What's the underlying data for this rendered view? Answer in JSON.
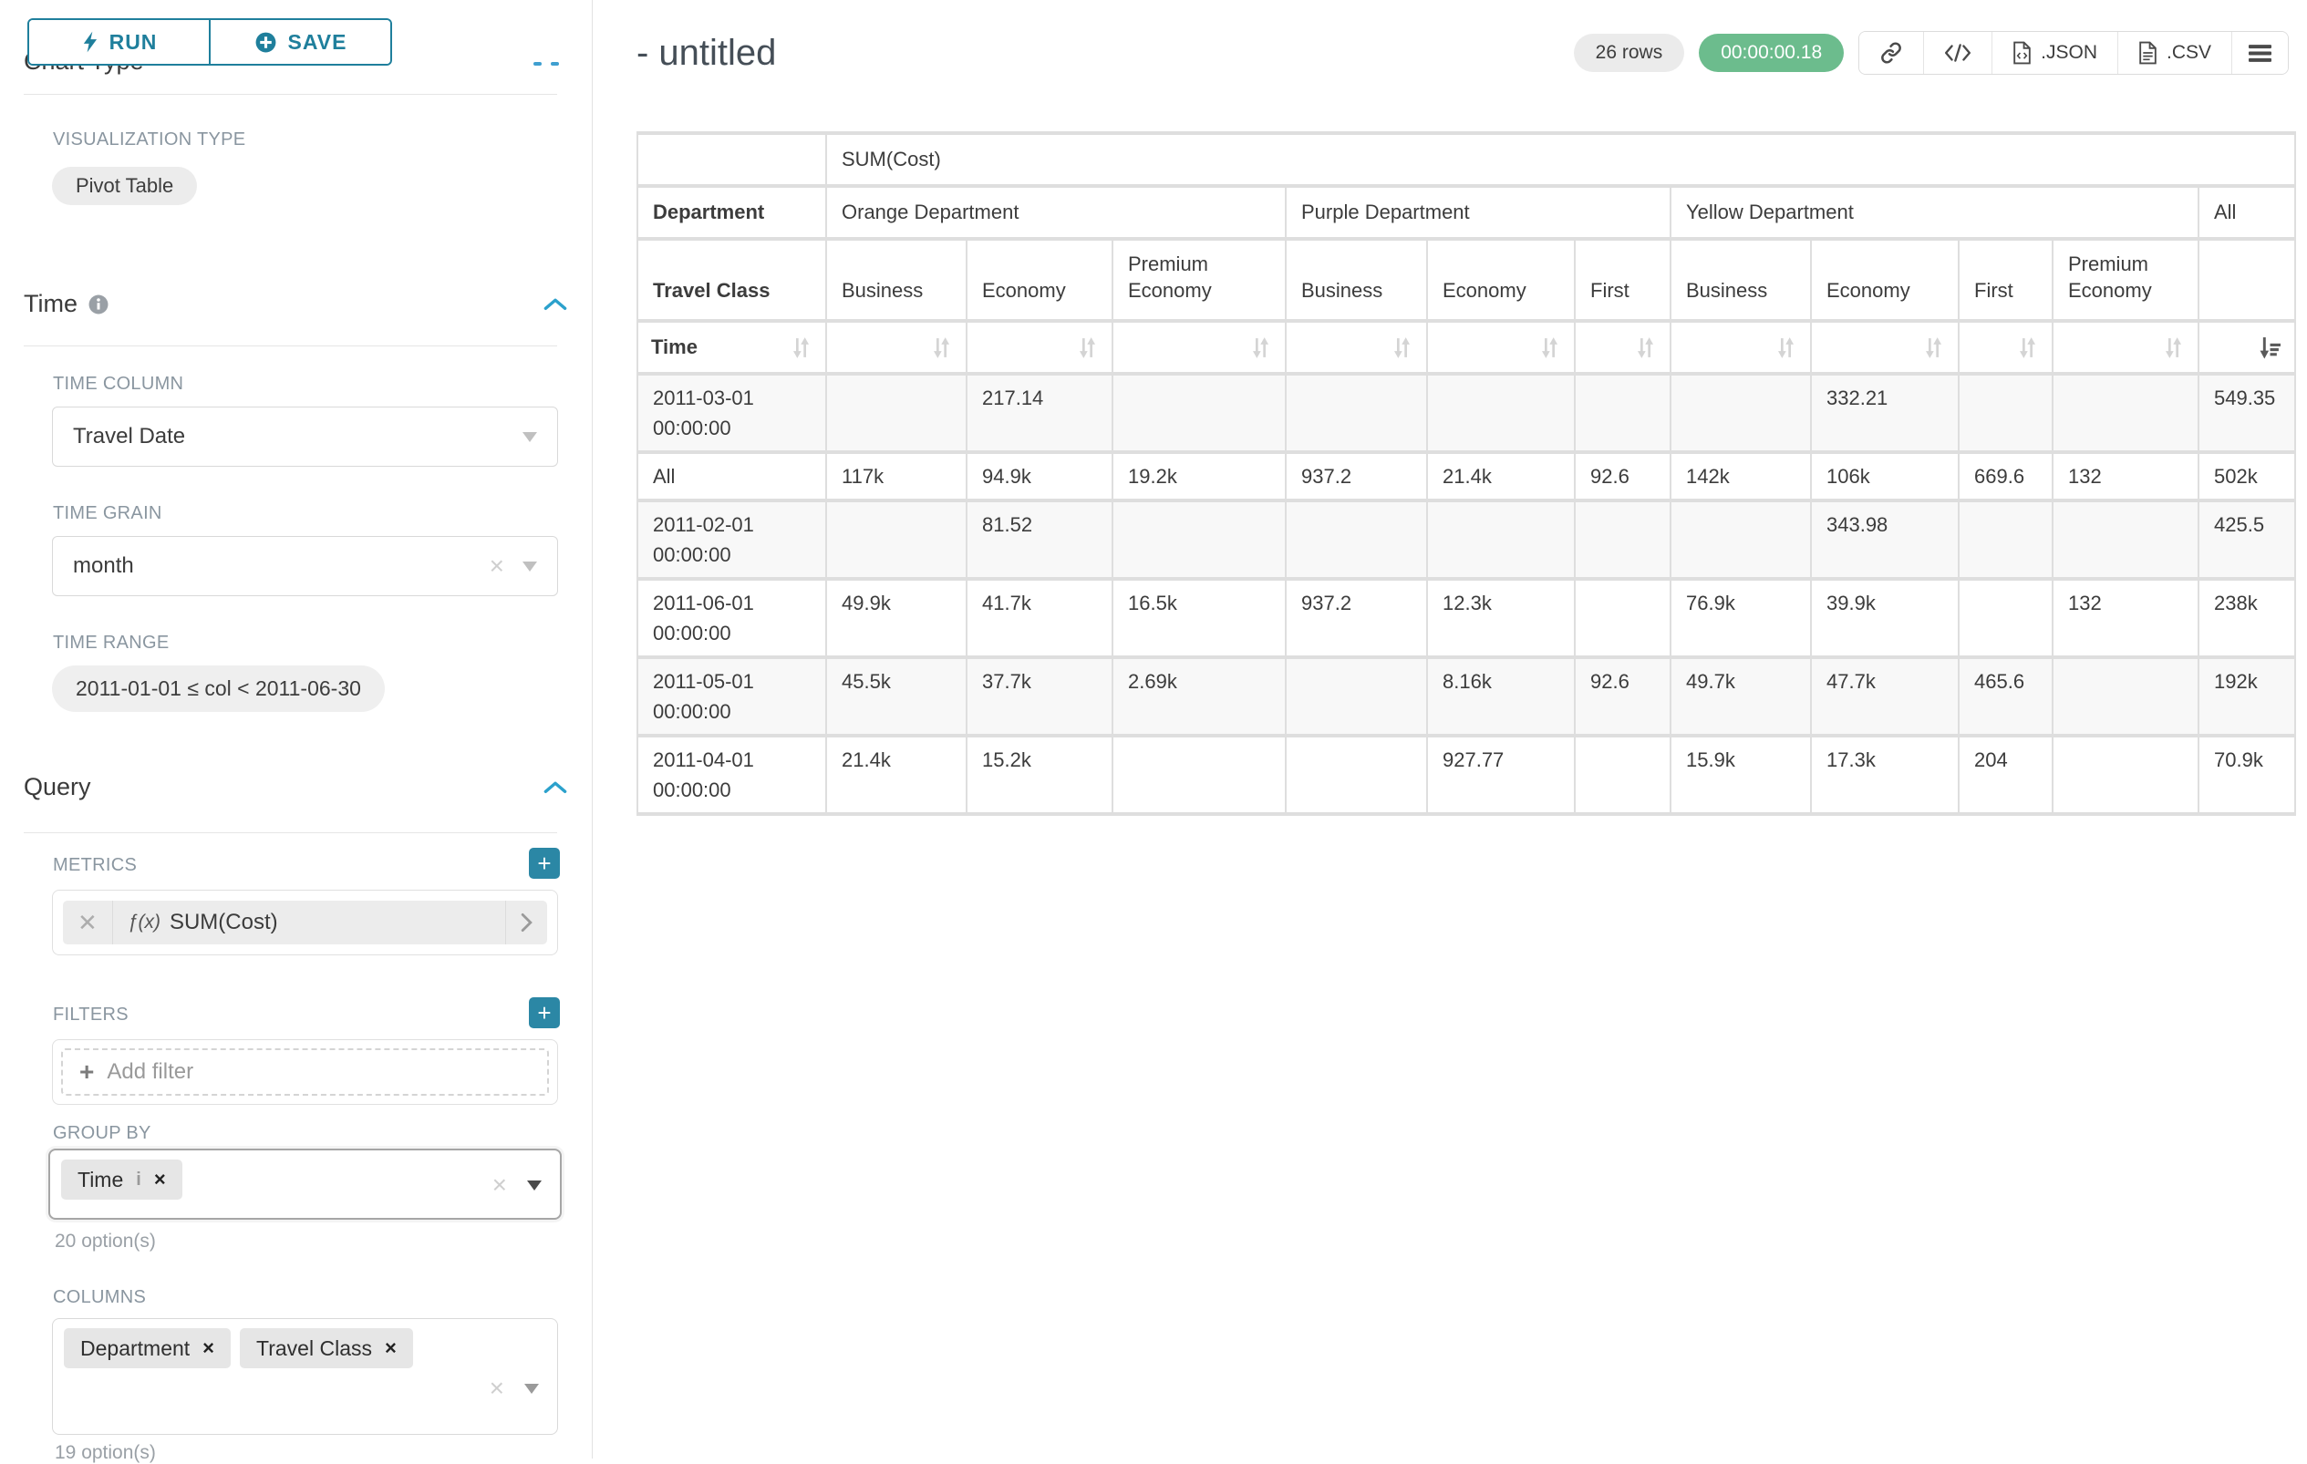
{
  "sidebar": {
    "run_label": "RUN",
    "save_label": "SAVE",
    "chart_type_heading": "Chart Type",
    "visualization_type_label": "VISUALIZATION TYPE",
    "visualization_type_value": "Pivot Table",
    "time_section": {
      "heading": "Time",
      "time_column_label": "TIME COLUMN",
      "time_column_value": "Travel Date",
      "time_grain_label": "TIME GRAIN",
      "time_grain_value": "month",
      "time_range_label": "TIME RANGE",
      "time_range_value": "2011-01-01 ≤ col < 2011-06-30"
    },
    "query_section": {
      "heading": "Query",
      "metrics_label": "METRICS",
      "metric_fx": "ƒ(x)",
      "metric_chip": "SUM(Cost)",
      "filters_label": "FILTERS",
      "add_filter_label": "Add filter",
      "group_by_label": "GROUP BY",
      "group_by_chips": [
        "Time"
      ],
      "group_by_options_hint": "20 option(s)",
      "columns_label": "COLUMNS",
      "columns_chips": [
        "Department",
        "Travel Class"
      ],
      "columns_options_hint": "19 option(s)"
    }
  },
  "header": {
    "title": "- untitled",
    "row_count": "26 rows",
    "timer": "00:00:00.18",
    "json_label": ".JSON",
    "csv_label": ".CSV"
  },
  "chart_data": {
    "type": "table",
    "metric": "SUM(Cost)",
    "corner": {
      "row2": "Department",
      "row3": "Travel Class",
      "row4": "Time"
    },
    "groups": [
      {
        "label": "Orange Department",
        "columns": [
          "Business",
          "Economy",
          "Premium Economy"
        ]
      },
      {
        "label": "Purple Department",
        "columns": [
          "Business",
          "Economy",
          "First"
        ]
      },
      {
        "label": "Yellow Department",
        "columns": [
          "Business",
          "Economy",
          "First",
          "Premium Economy"
        ]
      },
      {
        "label": "All",
        "columns": [
          ""
        ]
      }
    ],
    "rows": [
      {
        "label": "2011-03-01 00:00:00",
        "values": [
          "",
          "217.14",
          "",
          "",
          "",
          "",
          "",
          "332.21",
          "",
          "",
          "549.35"
        ]
      },
      {
        "label": "All",
        "values": [
          "117k",
          "94.9k",
          "19.2k",
          "937.2",
          "21.4k",
          "92.6",
          "142k",
          "106k",
          "669.6",
          "132",
          "502k"
        ]
      },
      {
        "label": "2011-02-01 00:00:00",
        "values": [
          "",
          "81.52",
          "",
          "",
          "",
          "",
          "",
          "343.98",
          "",
          "",
          "425.5"
        ]
      },
      {
        "label": "2011-06-01 00:00:00",
        "values": [
          "49.9k",
          "41.7k",
          "16.5k",
          "937.2",
          "12.3k",
          "",
          "76.9k",
          "39.9k",
          "",
          "132",
          "238k"
        ]
      },
      {
        "label": "2011-05-01 00:00:00",
        "values": [
          "45.5k",
          "37.7k",
          "2.69k",
          "",
          "8.16k",
          "92.6",
          "49.7k",
          "47.7k",
          "465.6",
          "",
          "192k"
        ]
      },
      {
        "label": "2011-04-01 00:00:00",
        "values": [
          "21.4k",
          "15.2k",
          "",
          "",
          "927.77",
          "",
          "15.9k",
          "17.3k",
          "204",
          "",
          "70.9k"
        ]
      }
    ],
    "sort": {
      "column": "All",
      "direction": "desc"
    }
  }
}
